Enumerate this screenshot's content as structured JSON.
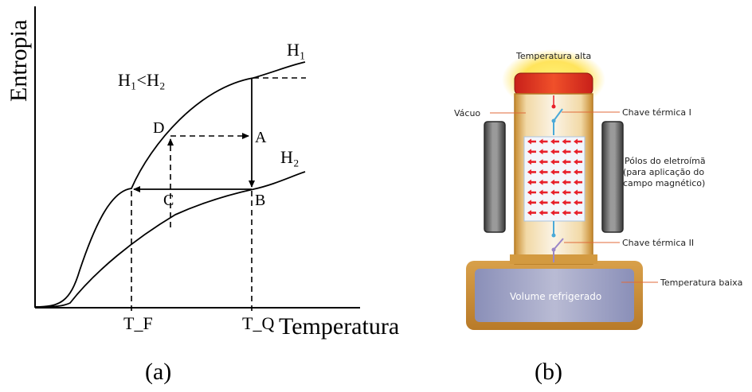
{
  "panel_a": {
    "y_axis_label": "Entropia",
    "x_axis_label": "Temperatura",
    "condition": "H₁<H₂",
    "curve_h1_label": "H₁",
    "curve_h2_label": "H₂",
    "point_a": "A",
    "point_b": "B",
    "point_c": "C",
    "point_d": "D",
    "tick_tf": "T_F",
    "tick_tq": "T_Q",
    "caption": "(a)"
  },
  "panel_b": {
    "label_hot": "Temperatura alta",
    "label_vacuum": "Vácuo",
    "label_switch_1": "Chave térmica I",
    "label_poles_line1": "Pólos do eletroímã",
    "label_poles_line2": "(para aplicação do",
    "label_poles_line3": "campo magnético)",
    "label_switch_2": "Chave térmica II",
    "label_cold": "Temperatura baixa",
    "label_volume": "Volume refrigerado",
    "caption": "(b)"
  },
  "colors": {
    "hot_source": "#e0402a",
    "glow": "#ffe14a",
    "container_gold": "#d79a3a",
    "arrow_red": "#e8202a",
    "switch_blue": "#4aa9d8",
    "magnet_gray": "#5a5a5a",
    "leader_line": "#e06a3a"
  }
}
